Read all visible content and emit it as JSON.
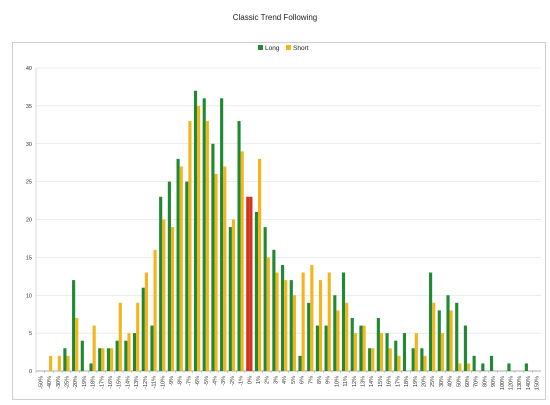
{
  "chart_data": {
    "type": "bar",
    "title": "Classic Trend Following",
    "xlabel": "",
    "ylabel": "",
    "ylim": [
      0,
      40
    ],
    "yticks": [
      0,
      5,
      10,
      15,
      20,
      25,
      30,
      35,
      40
    ],
    "grid": "horizontal",
    "legend": "top-center",
    "categories": [
      "-50%",
      "-40%",
      "-30%",
      "-25%",
      "-20%",
      "-19%",
      "-18%",
      "-17%",
      "-16%",
      "-15%",
      "-14%",
      "-13%",
      "-12%",
      "-11%",
      "-10%",
      "-9%",
      "-8%",
      "-7%",
      "-6%",
      "-5%",
      "-4%",
      "-3%",
      "-2%",
      "-1%",
      "0%",
      "1%",
      "2%",
      "3%",
      "4%",
      "5%",
      "6%",
      "7%",
      "8%",
      "9%",
      "10%",
      "11%",
      "12%",
      "13%",
      "14%",
      "15%",
      "16%",
      "17%",
      "18%",
      "19%",
      "20%",
      "25%",
      "30%",
      "40%",
      "50%",
      "60%",
      "70%",
      "80%",
      "90%",
      "100%",
      "120%",
      "130%",
      "140%",
      "150%"
    ],
    "series": [
      {
        "name": "Long",
        "color": "#1f8a33",
        "values": [
          0,
          0,
          0,
          3,
          12,
          4,
          1,
          3,
          3,
          4,
          4,
          5,
          11,
          6,
          23,
          25,
          28,
          25,
          37,
          36,
          30,
          36,
          19,
          33,
          23,
          21,
          19,
          16,
          14,
          12,
          2,
          9,
          6,
          6,
          10,
          13,
          7,
          6,
          3,
          7,
          5,
          4,
          5,
          3,
          3,
          13,
          8,
          10,
          9,
          6,
          2,
          1,
          2,
          0,
          1,
          0,
          1,
          0
        ]
      },
      {
        "name": "Short",
        "color": "#f2b51c",
        "values": [
          0,
          2,
          2,
          2,
          7,
          0,
          6,
          3,
          3,
          9,
          5,
          9,
          13,
          16,
          20,
          19,
          27,
          33,
          35,
          33,
          26,
          27,
          20,
          29,
          23,
          28,
          15,
          13,
          12,
          10,
          13,
          14,
          12,
          13,
          8,
          9,
          5,
          6,
          3,
          5,
          3,
          2,
          0,
          5,
          2,
          9,
          5,
          8,
          1,
          1,
          0,
          0,
          0,
          0,
          0,
          0,
          0,
          0
        ]
      }
    ],
    "highlight_category": "0%",
    "highlight_color": "#d0341d"
  }
}
